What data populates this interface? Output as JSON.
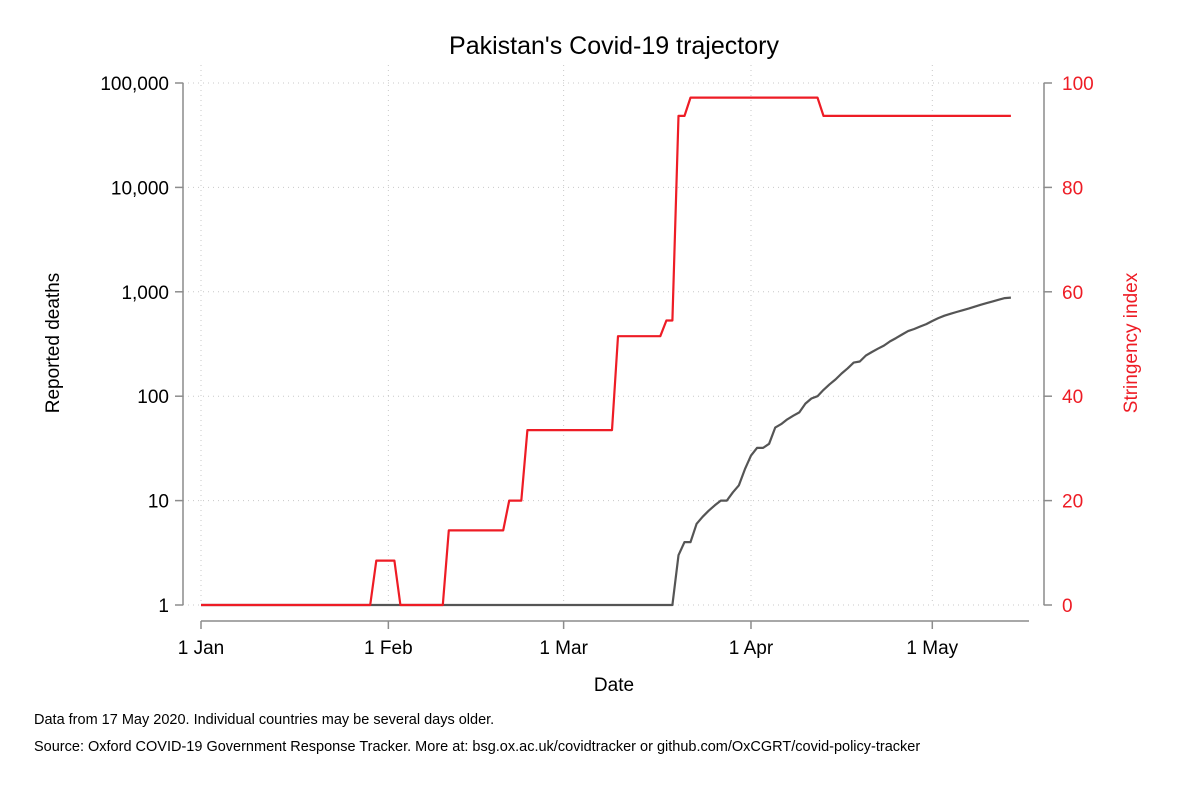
{
  "chart_data": {
    "type": "line",
    "title": "Pakistan's Covid-19 trajectory",
    "xlabel": "Date",
    "ylabel_left": "Reported deaths",
    "ylabel_right": "Stringency index",
    "x_ticks": [
      "1 Jan",
      "1 Feb",
      "1 Mar",
      "1 Apr",
      "1 May"
    ],
    "x_tick_dates": [
      "2020-01-01",
      "2020-02-01",
      "2020-03-01",
      "2020-04-01",
      "2020-05-01"
    ],
    "xlim": [
      "2020-01-01",
      "2020-05-17"
    ],
    "left_axis": {
      "scale": "log",
      "ylim": [
        1,
        100000
      ],
      "ticks": [
        1,
        10,
        100,
        1000,
        10000,
        100000
      ],
      "tick_labels": [
        "1",
        "10",
        "100",
        "1,000",
        "10,000",
        "100,000"
      ]
    },
    "right_axis": {
      "scale": "linear",
      "ylim": [
        0,
        100
      ],
      "ticks": [
        0,
        20,
        40,
        60,
        80,
        100
      ],
      "tick_labels": [
        "0",
        "20",
        "40",
        "60",
        "80",
        "100"
      ]
    },
    "grid": true,
    "series": [
      {
        "axis": "left",
        "color": "#555555",
        "points": [
          [
            "2020-01-01",
            1
          ],
          [
            "2020-03-19",
            1
          ],
          [
            "2020-03-20",
            3
          ],
          [
            "2020-03-21",
            4
          ],
          [
            "2020-03-22",
            4
          ],
          [
            "2020-03-23",
            6
          ],
          [
            "2020-03-24",
            7
          ],
          [
            "2020-03-25",
            8
          ],
          [
            "2020-03-26",
            9
          ],
          [
            "2020-03-27",
            10
          ],
          [
            "2020-03-28",
            10
          ],
          [
            "2020-03-29",
            12
          ],
          [
            "2020-03-30",
            14
          ],
          [
            "2020-03-31",
            20
          ],
          [
            "2020-04-01",
            27
          ],
          [
            "2020-04-02",
            32
          ],
          [
            "2020-04-03",
            32
          ],
          [
            "2020-04-04",
            35
          ],
          [
            "2020-04-05",
            50
          ],
          [
            "2020-04-06",
            54
          ],
          [
            "2020-04-07",
            60
          ],
          [
            "2020-04-08",
            65
          ],
          [
            "2020-04-09",
            70
          ],
          [
            "2020-04-10",
            85
          ],
          [
            "2020-04-11",
            95
          ],
          [
            "2020-04-12",
            100
          ],
          [
            "2020-04-13",
            115
          ],
          [
            "2020-04-14",
            130
          ],
          [
            "2020-04-15",
            145
          ],
          [
            "2020-04-16",
            165
          ],
          [
            "2020-04-17",
            185
          ],
          [
            "2020-04-18",
            210
          ],
          [
            "2020-04-19",
            215
          ],
          [
            "2020-04-20",
            245
          ],
          [
            "2020-04-21",
            265
          ],
          [
            "2020-04-22",
            285
          ],
          [
            "2020-04-23",
            305
          ],
          [
            "2020-04-24",
            335
          ],
          [
            "2020-04-25",
            360
          ],
          [
            "2020-04-26",
            390
          ],
          [
            "2020-04-27",
            420
          ],
          [
            "2020-04-28",
            440
          ],
          [
            "2020-04-29",
            465
          ],
          [
            "2020-04-30",
            490
          ],
          [
            "2020-05-01",
            525
          ],
          [
            "2020-05-02",
            560
          ],
          [
            "2020-05-03",
            590
          ],
          [
            "2020-05-04",
            615
          ],
          [
            "2020-05-05",
            640
          ],
          [
            "2020-05-06",
            665
          ],
          [
            "2020-05-07",
            690
          ],
          [
            "2020-05-08",
            720
          ],
          [
            "2020-05-09",
            750
          ],
          [
            "2020-05-10",
            780
          ],
          [
            "2020-05-11",
            810
          ],
          [
            "2020-05-12",
            840
          ],
          [
            "2020-05-13",
            870
          ],
          [
            "2020-05-14",
            880
          ]
        ]
      },
      {
        "axis": "right",
        "color": "#ee1c25",
        "points": [
          [
            "2020-01-01",
            0
          ],
          [
            "2020-01-29",
            0
          ],
          [
            "2020-01-30",
            8.5
          ],
          [
            "2020-01-31",
            8.5
          ],
          [
            "2020-02-02",
            8.5
          ],
          [
            "2020-02-03",
            0
          ],
          [
            "2020-02-10",
            0
          ],
          [
            "2020-02-11",
            14.3
          ],
          [
            "2020-02-20",
            14.3
          ],
          [
            "2020-02-21",
            20
          ],
          [
            "2020-02-23",
            20
          ],
          [
            "2020-02-24",
            33.5
          ],
          [
            "2020-03-09",
            33.5
          ],
          [
            "2020-03-10",
            51.5
          ],
          [
            "2020-03-17",
            51.5
          ],
          [
            "2020-03-18",
            54.5
          ],
          [
            "2020-03-19",
            54.5
          ],
          [
            "2020-03-20",
            93.7
          ],
          [
            "2020-03-21",
            93.7
          ],
          [
            "2020-03-22",
            97.2
          ],
          [
            "2020-04-12",
            97.2
          ],
          [
            "2020-04-13",
            93.7
          ],
          [
            "2020-05-14",
            93.7
          ]
        ]
      }
    ]
  },
  "footnotes": {
    "line1": "Data from 17 May 2020. Individual countries may be several days older.",
    "line2": "Source: Oxford COVID-19 Government Response Tracker. More at: bsg.ox.ac.uk/covidtracker or github.com/OxCGRT/covid-policy-tracker"
  }
}
